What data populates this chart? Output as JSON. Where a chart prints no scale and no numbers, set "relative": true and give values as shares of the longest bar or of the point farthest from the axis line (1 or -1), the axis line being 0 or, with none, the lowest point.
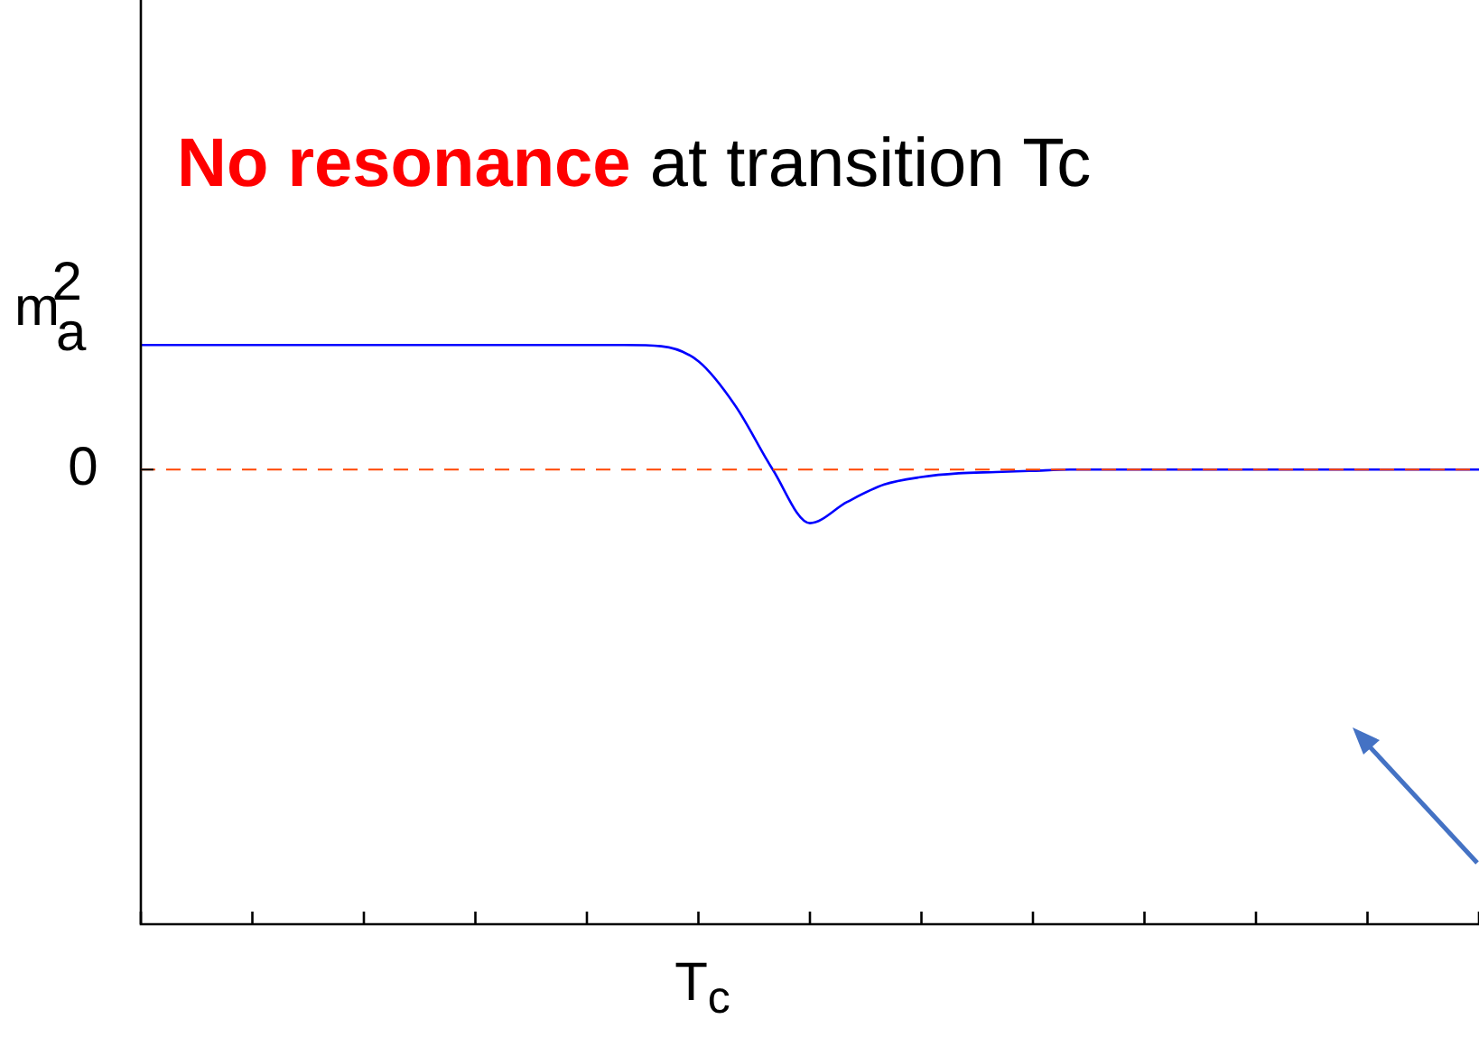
{
  "chart_data": {
    "type": "line",
    "relative": true,
    "annotations": [
      "No resonance",
      "at transition Tc",
      "T$_{c}$"
    ],
    "ylabel": "m$_{a}$$^{2}$",
    "categories": [
      null,
      null,
      null,
      null,
      null,
      null,
      null,
      null,
      null,
      null,
      null,
      null,
      null,
      null,
      null,
      null,
      null,
      null,
      null,
      null,
      null,
      null,
      null,
      null,
      null,
      null,
      null,
      null,
      null,
      null,
      null,
      null,
      null,
      null,
      null,
      null,
      null
    ],
    "series": [
      {
        "color": "#0000ff",
        "values": [
          1,
          1,
          1,
          1,
          1,
          1,
          1,
          1,
          1,
          1,
          1,
          1,
          1,
          1,
          0.99,
          0.87,
          0.51,
          0,
          -0.43,
          -0.26,
          -0.12,
          -0.06,
          -0.03,
          -0.02,
          -0.01,
          0,
          0,
          0,
          0,
          0,
          0,
          0,
          0,
          0,
          0,
          0,
          0
        ]
      }
    ],
    "ref_lines": [
      {
        "axis": "y",
        "value": 0,
        "label": "0",
        "color": "#ff4500",
        "line_style": "dashed"
      }
    ],
    "grid": false,
    "legend": false,
    "marker": "none",
    "line_style": "solid"
  }
}
